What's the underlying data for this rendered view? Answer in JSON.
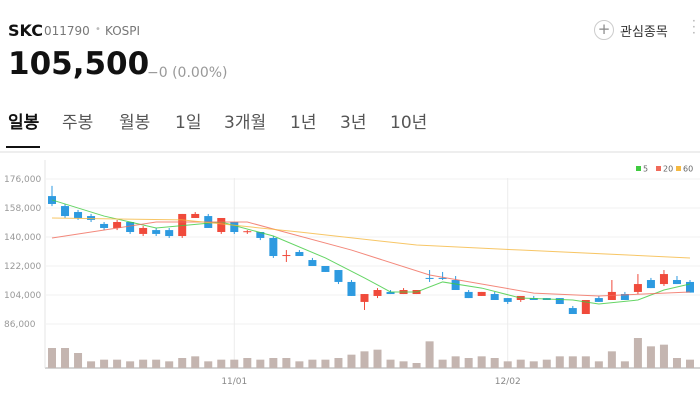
{
  "header": {
    "name": "SKC",
    "code": "011790",
    "separator": "•",
    "market": "KOSPI",
    "price": "105,500",
    "change": "−0 (0.00%)",
    "watch_button": "관심종목"
  },
  "tabs": [
    "일봉",
    "주봉",
    "월봉",
    "1일",
    "3개월",
    "1년",
    "3년",
    "10년"
  ],
  "chart_data": {
    "type": "candlestick",
    "categories": [
      null,
      null,
      null,
      null,
      null,
      null,
      null,
      null,
      null,
      null,
      null,
      null,
      null,
      null,
      "11/01",
      null,
      null,
      null,
      null,
      null,
      null,
      null,
      null,
      null,
      null,
      null,
      null,
      null,
      null,
      null,
      null,
      null,
      null,
      null,
      null,
      "12/02",
      null,
      null,
      null,
      null,
      null,
      null,
      null,
      null,
      null,
      null,
      null,
      null,
      null,
      null
    ],
    "open": [
      165400,
      159200,
      155500,
      153000,
      148100,
      145600,
      149300,
      141900,
      144300,
      144300,
      140600,
      151800,
      153000,
      143100,
      149300,
      143100,
      143100,
      139400,
      128200,
      130700,
      125700,
      122000,
      119500,
      112100,
      99700,
      103400,
      105900,
      104600,
      104600,
      114600,
      114600,
      113300,
      105900,
      103400,
      104600,
      102100,
      100900,
      102100,
      102100,
      102100,
      95900,
      92200,
      102100,
      100900,
      104600,
      105900,
      113300,
      110800,
      113300,
      112100
    ],
    "high": [
      171700,
      160500,
      156800,
      154300,
      149300,
      150600,
      149300,
      146800,
      145600,
      145600,
      154300,
      155500,
      154300,
      151800,
      149300,
      144300,
      143100,
      140600,
      131900,
      131900,
      127000,
      122000,
      119500,
      113300,
      104600,
      108300,
      107100,
      108300,
      107100,
      119500,
      118300,
      115800,
      107100,
      105900,
      105900,
      102100,
      103400,
      103400,
      102100,
      102100,
      97200,
      100900,
      103400,
      113300,
      105900,
      117000,
      114600,
      119500,
      115800,
      113300
    ],
    "low": [
      159200,
      151800,
      150600,
      149300,
      144300,
      144300,
      141900,
      140600,
      140600,
      139400,
      139400,
      151800,
      145600,
      141900,
      141900,
      141900,
      138100,
      127000,
      124500,
      128200,
      122000,
      118300,
      110800,
      103400,
      94700,
      102100,
      104600,
      104600,
      104600,
      112100,
      113300,
      107100,
      102100,
      103400,
      100900,
      98400,
      99700,
      100900,
      100900,
      98400,
      92200,
      92200,
      99700,
      100900,
      100900,
      104600,
      108300,
      109600,
      110800,
      105500
    ],
    "close": [
      160500,
      153000,
      151800,
      150600,
      145600,
      149300,
      143100,
      145600,
      141900,
      140600,
      154300,
      154300,
      145600,
      151800,
      143100,
      143600,
      139400,
      128200,
      128800,
      128200,
      122000,
      118300,
      112100,
      103400,
      104600,
      107100,
      104600,
      107100,
      107100,
      114000,
      114000,
      107100,
      102100,
      105900,
      100900,
      99700,
      103400,
      100900,
      100900,
      98400,
      92200,
      100900,
      99700,
      105900,
      100900,
      110800,
      108300,
      117000,
      110800,
      105500
    ],
    "volume": [
      24,
      24,
      18,
      8,
      10,
      10,
      8,
      10,
      10,
      8,
      12,
      14,
      8,
      10,
      10,
      12,
      10,
      12,
      12,
      8,
      10,
      10,
      12,
      16,
      20,
      22,
      10,
      8,
      6,
      32,
      10,
      14,
      12,
      14,
      12,
      8,
      10,
      8,
      10,
      14,
      14,
      14,
      8,
      20,
      8,
      36,
      26,
      28,
      12,
      10
    ],
    "up_color": "#f04a3b",
    "down_color": "#2d9ae0",
    "volume_color": "#c4b5b0",
    "moving_averages": [
      {
        "name": "5",
        "color": "#3fcb3f",
        "x": [
          0,
          4,
          8,
          13,
          17,
          21,
          24,
          26,
          28,
          30,
          33,
          36,
          40,
          42,
          45,
          47,
          49
        ],
        "values": [
          163000,
          153000,
          145600,
          149300,
          140600,
          127000,
          114600,
          105900,
          105900,
          112100,
          108300,
          102100,
          100900,
          98400,
          100900,
          107100,
          110800
        ]
      },
      {
        "name": "20",
        "color": "#f06a5a",
        "x": [
          0,
          8,
          15,
          23,
          29,
          37,
          42,
          49
        ],
        "values": [
          139400,
          149300,
          149300,
          131900,
          116400,
          105200,
          103400,
          105900
        ]
      },
      {
        "name": "60",
        "color": "#f5b840",
        "x": [
          0,
          10,
          19,
          28,
          36,
          49
        ],
        "values": [
          151800,
          150600,
          143100,
          135000,
          131900,
          127000
        ]
      }
    ],
    "ylim": [
      86000,
      176000
    ],
    "yticks": [
      {
        "value": 176000,
        "label": "176,000"
      },
      {
        "value": 158000,
        "label": "158,000"
      },
      {
        "value": 140000,
        "label": "140,000"
      },
      {
        "value": 122000,
        "label": "122,000"
      },
      {
        "value": 104000,
        "label": "104,000"
      },
      {
        "value": 86000,
        "label": "86,000"
      }
    ]
  }
}
